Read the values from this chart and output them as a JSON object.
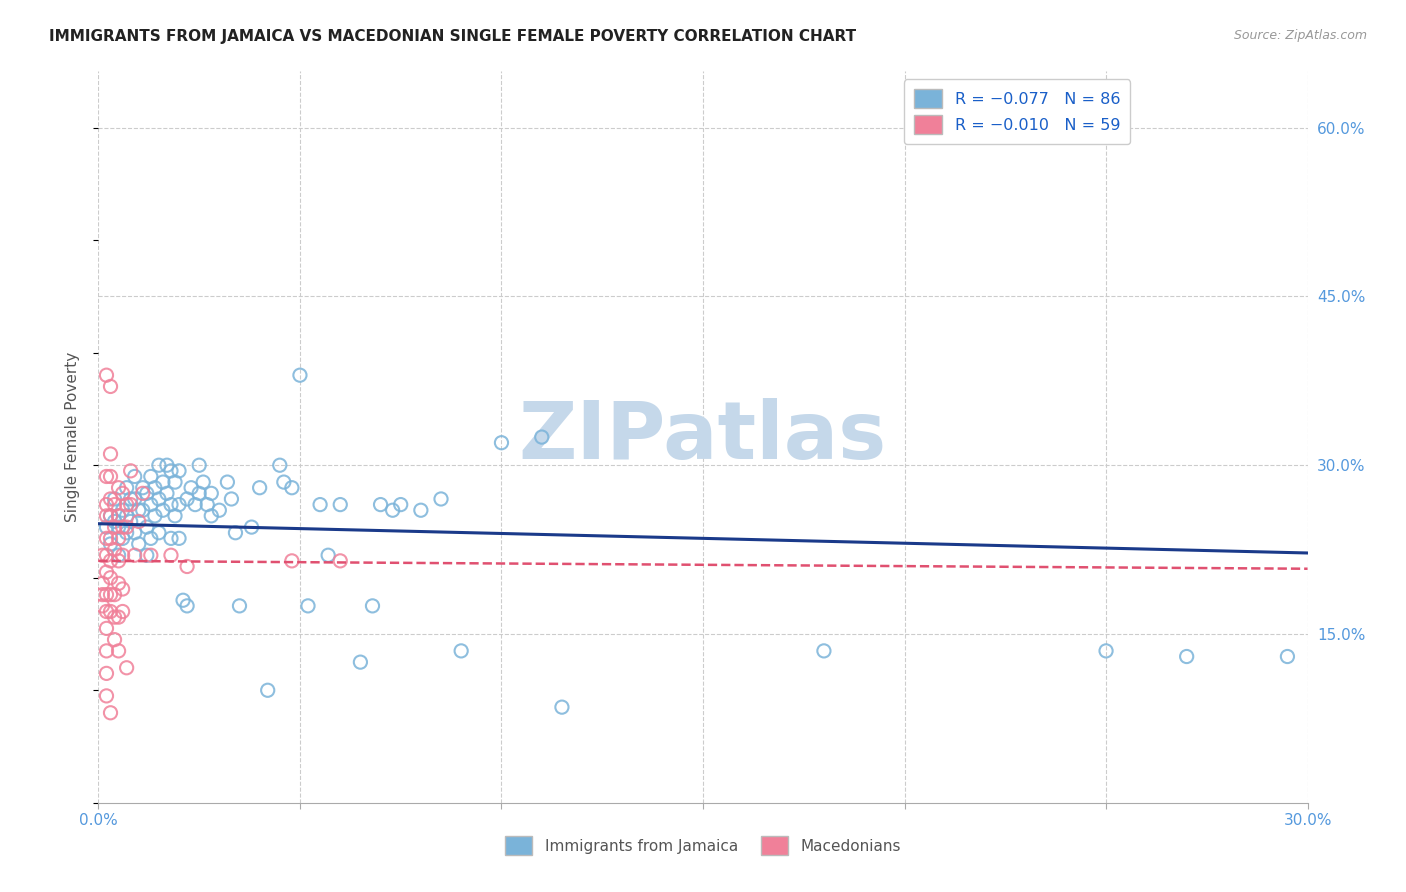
{
  "title": "IMMIGRANTS FROM JAMAICA VS MACEDONIAN SINGLE FEMALE POVERTY CORRELATION CHART",
  "source": "Source: ZipAtlas.com",
  "ylabel": "Single Female Poverty",
  "yticks": [
    "15.0%",
    "30.0%",
    "45.0%",
    "60.0%"
  ],
  "ytick_vals": [
    0.15,
    0.3,
    0.45,
    0.6
  ],
  "xlim": [
    0.0,
    0.3
  ],
  "ylim": [
    0.0,
    0.65
  ],
  "x_tick_vals": [
    0.0,
    0.05,
    0.1,
    0.15,
    0.2,
    0.25,
    0.3
  ],
  "x_label_only_ends": true,
  "jamaica_trend_x": [
    0.0,
    0.3
  ],
  "jamaica_trend_y": [
    0.248,
    0.222
  ],
  "macedonia_trend_x": [
    0.0,
    0.3
  ],
  "macedonia_trend_y": [
    0.215,
    0.208
  ],
  "scatter_size": 90,
  "scatter_linewidth": 1.5,
  "scatter_alpha": 0.85,
  "jamaica_color": "#7ab3d9",
  "macedonia_color": "#f08099",
  "jamaica_trend_color": "#1a3a8a",
  "macedonia_trend_color": "#e05070",
  "background_color": "#ffffff",
  "grid_color": "#cccccc",
  "title_color": "#222222",
  "axis_tick_color": "#5599dd",
  "watermark": "ZIPatlas",
  "watermark_color": "#c5d8ea",
  "legend_top_color": "#1a5fc8",
  "jamaica_scatter": [
    [
      0.002,
      0.245
    ],
    [
      0.003,
      0.255
    ],
    [
      0.003,
      0.23
    ],
    [
      0.004,
      0.25
    ],
    [
      0.004,
      0.27
    ],
    [
      0.005,
      0.245
    ],
    [
      0.005,
      0.255
    ],
    [
      0.005,
      0.22
    ],
    [
      0.006,
      0.26
    ],
    [
      0.006,
      0.235
    ],
    [
      0.007,
      0.28
    ],
    [
      0.007,
      0.255
    ],
    [
      0.007,
      0.24
    ],
    [
      0.008,
      0.27
    ],
    [
      0.008,
      0.25
    ],
    [
      0.009,
      0.29
    ],
    [
      0.009,
      0.27
    ],
    [
      0.009,
      0.24
    ],
    [
      0.01,
      0.26
    ],
    [
      0.01,
      0.23
    ],
    [
      0.011,
      0.28
    ],
    [
      0.011,
      0.26
    ],
    [
      0.012,
      0.275
    ],
    [
      0.012,
      0.245
    ],
    [
      0.012,
      0.22
    ],
    [
      0.013,
      0.29
    ],
    [
      0.013,
      0.265
    ],
    [
      0.013,
      0.235
    ],
    [
      0.014,
      0.28
    ],
    [
      0.014,
      0.255
    ],
    [
      0.015,
      0.3
    ],
    [
      0.015,
      0.27
    ],
    [
      0.015,
      0.24
    ],
    [
      0.016,
      0.285
    ],
    [
      0.016,
      0.26
    ],
    [
      0.017,
      0.3
    ],
    [
      0.017,
      0.275
    ],
    [
      0.018,
      0.295
    ],
    [
      0.018,
      0.265
    ],
    [
      0.018,
      0.235
    ],
    [
      0.019,
      0.285
    ],
    [
      0.019,
      0.255
    ],
    [
      0.02,
      0.295
    ],
    [
      0.02,
      0.265
    ],
    [
      0.02,
      0.235
    ],
    [
      0.021,
      0.18
    ],
    [
      0.022,
      0.175
    ],
    [
      0.022,
      0.27
    ],
    [
      0.023,
      0.28
    ],
    [
      0.024,
      0.265
    ],
    [
      0.025,
      0.3
    ],
    [
      0.025,
      0.275
    ],
    [
      0.026,
      0.285
    ],
    [
      0.027,
      0.265
    ],
    [
      0.028,
      0.275
    ],
    [
      0.028,
      0.255
    ],
    [
      0.03,
      0.26
    ],
    [
      0.032,
      0.285
    ],
    [
      0.033,
      0.27
    ],
    [
      0.034,
      0.24
    ],
    [
      0.035,
      0.175
    ],
    [
      0.038,
      0.245
    ],
    [
      0.04,
      0.28
    ],
    [
      0.042,
      0.1
    ],
    [
      0.045,
      0.3
    ],
    [
      0.046,
      0.285
    ],
    [
      0.048,
      0.28
    ],
    [
      0.05,
      0.38
    ],
    [
      0.052,
      0.175
    ],
    [
      0.055,
      0.265
    ],
    [
      0.057,
      0.22
    ],
    [
      0.06,
      0.265
    ],
    [
      0.065,
      0.125
    ],
    [
      0.068,
      0.175
    ],
    [
      0.07,
      0.265
    ],
    [
      0.073,
      0.26
    ],
    [
      0.075,
      0.265
    ],
    [
      0.08,
      0.26
    ],
    [
      0.085,
      0.27
    ],
    [
      0.09,
      0.135
    ],
    [
      0.1,
      0.32
    ],
    [
      0.11,
      0.325
    ],
    [
      0.115,
      0.085
    ],
    [
      0.18,
      0.135
    ],
    [
      0.25,
      0.135
    ],
    [
      0.27,
      0.13
    ],
    [
      0.295,
      0.13
    ]
  ],
  "macedonia_scatter": [
    [
      0.001,
      0.22
    ],
    [
      0.001,
      0.195
    ],
    [
      0.001,
      0.185
    ],
    [
      0.001,
      0.175
    ],
    [
      0.002,
      0.38
    ],
    [
      0.002,
      0.29
    ],
    [
      0.002,
      0.265
    ],
    [
      0.002,
      0.255
    ],
    [
      0.002,
      0.235
    ],
    [
      0.002,
      0.22
    ],
    [
      0.002,
      0.205
    ],
    [
      0.002,
      0.185
    ],
    [
      0.002,
      0.17
    ],
    [
      0.002,
      0.155
    ],
    [
      0.002,
      0.135
    ],
    [
      0.002,
      0.115
    ],
    [
      0.002,
      0.095
    ],
    [
      0.003,
      0.37
    ],
    [
      0.003,
      0.31
    ],
    [
      0.003,
      0.29
    ],
    [
      0.003,
      0.27
    ],
    [
      0.003,
      0.255
    ],
    [
      0.003,
      0.235
    ],
    [
      0.003,
      0.215
    ],
    [
      0.003,
      0.2
    ],
    [
      0.003,
      0.185
    ],
    [
      0.003,
      0.17
    ],
    [
      0.003,
      0.08
    ],
    [
      0.004,
      0.265
    ],
    [
      0.004,
      0.245
    ],
    [
      0.004,
      0.225
    ],
    [
      0.004,
      0.185
    ],
    [
      0.004,
      0.165
    ],
    [
      0.004,
      0.145
    ],
    [
      0.005,
      0.28
    ],
    [
      0.005,
      0.255
    ],
    [
      0.005,
      0.235
    ],
    [
      0.005,
      0.215
    ],
    [
      0.005,
      0.195
    ],
    [
      0.005,
      0.165
    ],
    [
      0.005,
      0.135
    ],
    [
      0.006,
      0.275
    ],
    [
      0.006,
      0.245
    ],
    [
      0.006,
      0.22
    ],
    [
      0.006,
      0.19
    ],
    [
      0.006,
      0.17
    ],
    [
      0.007,
      0.265
    ],
    [
      0.007,
      0.245
    ],
    [
      0.007,
      0.12
    ],
    [
      0.008,
      0.295
    ],
    [
      0.008,
      0.265
    ],
    [
      0.009,
      0.22
    ],
    [
      0.01,
      0.25
    ],
    [
      0.011,
      0.275
    ],
    [
      0.013,
      0.22
    ],
    [
      0.018,
      0.22
    ],
    [
      0.022,
      0.21
    ],
    [
      0.048,
      0.215
    ],
    [
      0.06,
      0.215
    ]
  ]
}
